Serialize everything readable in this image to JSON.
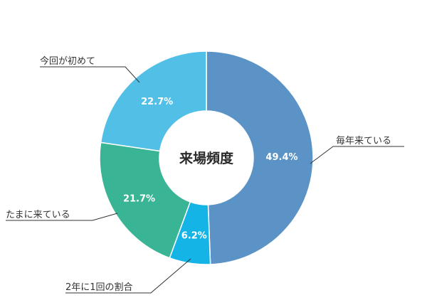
{
  "chart_data": {
    "type": "pie",
    "title": "来場頻度",
    "slices": [
      {
        "label": "毎年来ている",
        "value": 49.4,
        "display": "49.4%",
        "color": "#5b93c7"
      },
      {
        "label": "2年に1回の割合",
        "value": 6.2,
        "display": "6.2%",
        "color": "#14b4e6"
      },
      {
        "label": "たまに来ている",
        "value": 21.7,
        "display": "21.7%",
        "color": "#39b494"
      },
      {
        "label": "今回が初めて",
        "value": 22.7,
        "display": "22.7%",
        "color": "#52bfe7"
      }
    ],
    "legend": "callout-labels"
  }
}
